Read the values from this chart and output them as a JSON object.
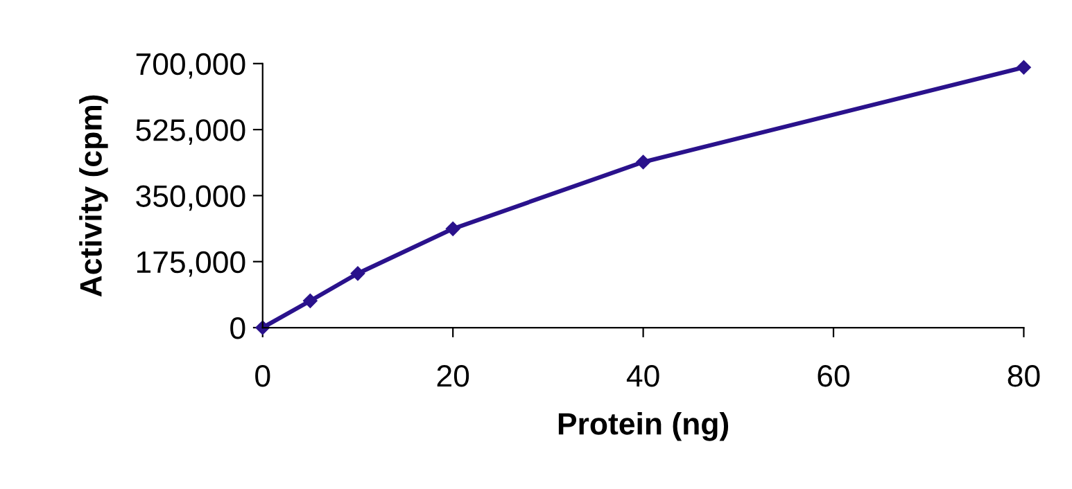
{
  "chart_data": {
    "type": "line",
    "xlabel": "Protein (ng)",
    "ylabel": "Activity (cpm)",
    "x": [
      0,
      5,
      10,
      20,
      40,
      80
    ],
    "series": [
      {
        "color": "#2a128c",
        "values": [
          0,
          71000,
          143500,
          262000,
          439000,
          690000
        ]
      }
    ],
    "xlim": [
      0,
      80
    ],
    "xticks": [
      0,
      20,
      40,
      60,
      80
    ],
    "ylim": [
      0,
      700000
    ],
    "yticks": [
      {
        "value": 0,
        "label": "0"
      },
      {
        "value": 175000,
        "label": "175,000"
      },
      {
        "value": 350000,
        "label": "350,000"
      },
      {
        "value": 525000,
        "label": "525,000"
      },
      {
        "value": 700000,
        "label": "700,000"
      }
    ],
    "marker": "diamond",
    "line_style": "solid",
    "grid": false,
    "legend": false
  }
}
